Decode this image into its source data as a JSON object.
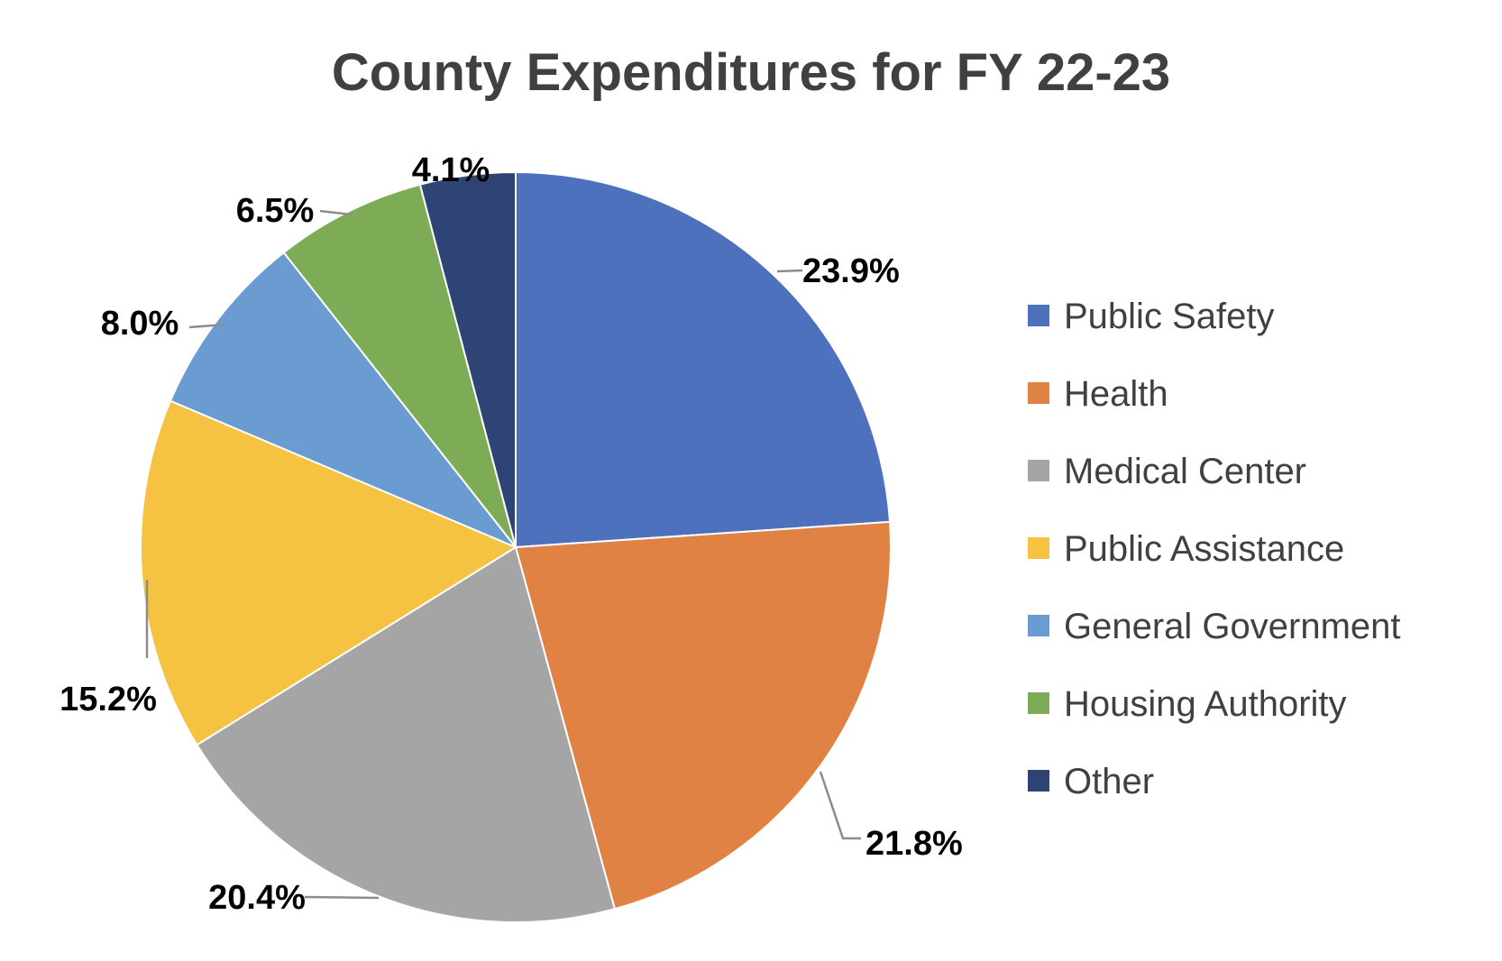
{
  "chart_data": {
    "type": "pie",
    "title": "County Expenditures for FY 22-23",
    "categories": [
      "Public Safety",
      "Health",
      "Medical Center",
      "Public Assistance",
      "General Government",
      "Housing Authority",
      "Other"
    ],
    "values": [
      23.9,
      21.8,
      20.4,
      15.2,
      8.0,
      6.5,
      4.1
    ],
    "labels": [
      "23.9%",
      "21.8%",
      "20.4%",
      "15.2%",
      "8.0%",
      "6.5%",
      "4.1%"
    ],
    "colors": [
      "#4E71BE",
      "#DF8244",
      "#A5A5A5",
      "#F5C242",
      "#6A9BD1",
      "#7EAB55",
      "#2D4474"
    ],
    "legend_position": "right"
  }
}
